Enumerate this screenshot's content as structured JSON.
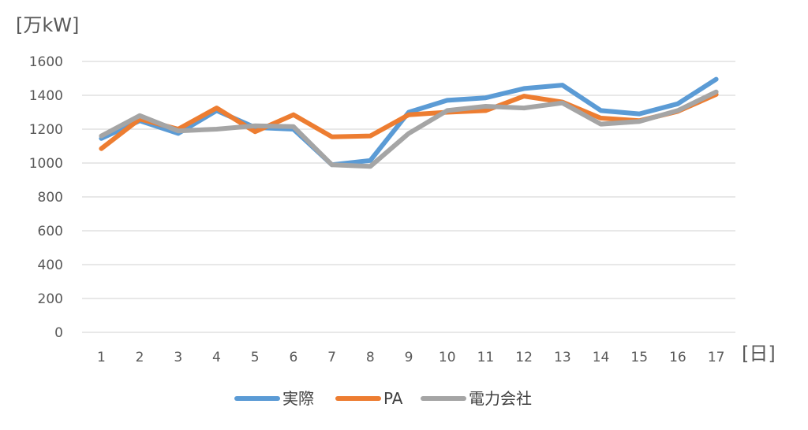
{
  "chart_data": {
    "type": "line",
    "ylabel": "[万kW]",
    "xlabel": "[日]",
    "categories": [
      "1",
      "2",
      "3",
      "4",
      "5",
      "6",
      "7",
      "8",
      "9",
      "10",
      "11",
      "12",
      "13",
      "14",
      "15",
      "16",
      "17"
    ],
    "ylim": [
      0,
      1600
    ],
    "yticks": [
      0,
      200,
      400,
      600,
      800,
      1000,
      1200,
      1400,
      1600
    ],
    "grid": true,
    "legend_position": "bottom",
    "series": [
      {
        "name": "実際",
        "color": "#5b9bd5",
        "values": [
          1145,
          1250,
          1175,
          1310,
          1210,
          1200,
          990,
          1015,
          1300,
          1370,
          1385,
          1440,
          1460,
          1310,
          1290,
          1350,
          1495
        ]
      },
      {
        "name": "PA",
        "color": "#ed7d31",
        "values": [
          1085,
          1260,
          1200,
          1325,
          1185,
          1285,
          1155,
          1160,
          1285,
          1300,
          1310,
          1395,
          1360,
          1265,
          1250,
          1305,
          1405
        ]
      },
      {
        "name": "電力会社",
        "color": "#a5a5a5",
        "values": [
          1160,
          1280,
          1190,
          1200,
          1220,
          1215,
          990,
          980,
          1175,
          1310,
          1335,
          1325,
          1355,
          1230,
          1245,
          1310,
          1420
        ]
      }
    ]
  }
}
